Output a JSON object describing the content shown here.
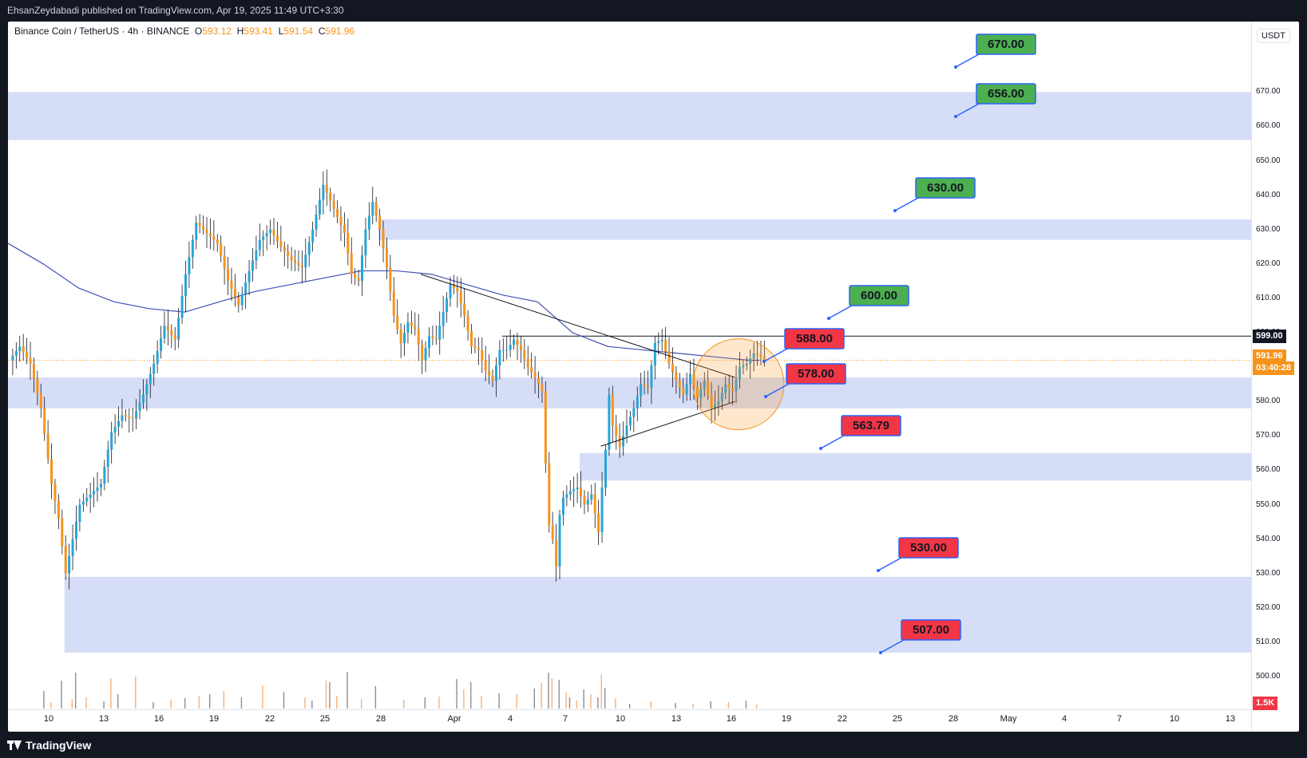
{
  "header": {
    "published_by": "EhsanZeydabadi published on TradingView.com, Apr 19, 2025 11:49 UTC+3:30"
  },
  "legend": {
    "symbol": "Binance Coin / TetherUS · 4h · BINANCE",
    "open_label": "O",
    "open": "593.12",
    "high_label": "H",
    "high": "593.41",
    "low_label": "L",
    "low": "591.54",
    "close_label": "C",
    "close": "591.96"
  },
  "footer": {
    "brand": "TradingView"
  },
  "colors": {
    "up": "#26a5d9",
    "down": "#f7931a",
    "ma": "#3f51b5",
    "zone": "#d6ddf6",
    "label_green": "#4caf50",
    "label_red": "#f23645",
    "label_border": "#2962ff",
    "current_price": "#f7931a",
    "volume_up": "#8c8f96",
    "volume_down": "#f6b27c"
  },
  "chart_data": {
    "type": "candlestick",
    "symbol": "BNB/USDT",
    "timeframe": "4h",
    "currency": "USDT",
    "ylim": [
      495,
      678
    ],
    "y_ticks": [
      500,
      510,
      520,
      530,
      540,
      550,
      560,
      570,
      580,
      590,
      600,
      610,
      620,
      630,
      640,
      650,
      660,
      670
    ],
    "x_ticks": [
      "10",
      "13",
      "16",
      "19",
      "22",
      "25",
      "28",
      "Apr",
      "4",
      "7",
      "10",
      "13",
      "16",
      "19",
      "22",
      "25",
      "28",
      "May",
      "4",
      "7",
      "10",
      "13"
    ],
    "price_path": [
      [
        0,
        592
      ],
      [
        3,
        596
      ],
      [
        6,
        591
      ],
      [
        9,
        578
      ],
      [
        12,
        556
      ],
      [
        14,
        546
      ],
      [
        16,
        530
      ],
      [
        18,
        540
      ],
      [
        20,
        550
      ],
      [
        23,
        553
      ],
      [
        26,
        556
      ],
      [
        29,
        571
      ],
      [
        32,
        576
      ],
      [
        35,
        575
      ],
      [
        38,
        582
      ],
      [
        41,
        591
      ],
      [
        44,
        602
      ],
      [
        47,
        598
      ],
      [
        50,
        617
      ],
      [
        53,
        632
      ],
      [
        56,
        629
      ],
      [
        59,
        626
      ],
      [
        62,
        615
      ],
      [
        65,
        608
      ],
      [
        68,
        618
      ],
      [
        71,
        627
      ],
      [
        74,
        630
      ],
      [
        77,
        625
      ],
      [
        80,
        621
      ],
      [
        83,
        619
      ],
      [
        86,
        630
      ],
      [
        89,
        643
      ],
      [
        92,
        636
      ],
      [
        95,
        629
      ],
      [
        97,
        617
      ],
      [
        99,
        615
      ],
      [
        101,
        630
      ],
      [
        103,
        638
      ],
      [
        105,
        630
      ],
      [
        107,
        619
      ],
      [
        109,
        605
      ],
      [
        111,
        597
      ],
      [
        113,
        603
      ],
      [
        115,
        601
      ],
      [
        117,
        592
      ],
      [
        119,
        599
      ],
      [
        121,
        598
      ],
      [
        123,
        606
      ],
      [
        125,
        614
      ],
      [
        127,
        612
      ],
      [
        129,
        605
      ],
      [
        131,
        596
      ],
      [
        133,
        595
      ],
      [
        135,
        589
      ],
      [
        137,
        586
      ],
      [
        139,
        595
      ],
      [
        141,
        595
      ],
      [
        143,
        598
      ],
      [
        145,
        595
      ],
      [
        147,
        590
      ],
      [
        149,
        587
      ],
      [
        151,
        583
      ],
      [
        152,
        562
      ],
      [
        153,
        544
      ],
      [
        154,
        540
      ],
      [
        155,
        532
      ],
      [
        156,
        547
      ],
      [
        157,
        552
      ],
      [
        159,
        554
      ],
      [
        161,
        555
      ],
      [
        163,
        550
      ],
      [
        165,
        553
      ],
      [
        167,
        542
      ],
      [
        168,
        555
      ],
      [
        169,
        566
      ],
      [
        170,
        582
      ],
      [
        171,
        573
      ],
      [
        173,
        567
      ],
      [
        175,
        573
      ],
      [
        177,
        578
      ],
      [
        179,
        585
      ],
      [
        181,
        584
      ],
      [
        183,
        597
      ],
      [
        185,
        598
      ],
      [
        187,
        591
      ],
      [
        189,
        586
      ],
      [
        191,
        582
      ],
      [
        193,
        588
      ],
      [
        195,
        581
      ],
      [
        197,
        586
      ],
      [
        199,
        578
      ],
      [
        201,
        580
      ],
      [
        203,
        585
      ],
      [
        205,
        583
      ],
      [
        207,
        590
      ],
      [
        209,
        591
      ],
      [
        211,
        594
      ],
      [
        213,
        593
      ],
      [
        214,
        592
      ]
    ],
    "moving_average": [
      [
        0,
        626
      ],
      [
        10,
        620
      ],
      [
        20,
        613
      ],
      [
        30,
        609
      ],
      [
        40,
        607
      ],
      [
        50,
        606
      ],
      [
        60,
        609
      ],
      [
        70,
        612
      ],
      [
        80,
        614
      ],
      [
        90,
        616
      ],
      [
        100,
        618
      ],
      [
        110,
        618
      ],
      [
        120,
        617
      ],
      [
        130,
        614
      ],
      [
        140,
        611
      ],
      [
        150,
        609
      ],
      [
        160,
        600
      ],
      [
        170,
        596
      ],
      [
        180,
        595
      ],
      [
        190,
        594
      ],
      [
        200,
        593
      ],
      [
        210,
        592
      ],
      [
        213,
        592
      ]
    ],
    "volume": [
      [
        10,
        22
      ],
      [
        12,
        8
      ],
      [
        15,
        35
      ],
      [
        18,
        12
      ],
      [
        19,
        45
      ],
      [
        22,
        14
      ],
      [
        27,
        9
      ],
      [
        29,
        38
      ],
      [
        31,
        18
      ],
      [
        36,
        40
      ],
      [
        41,
        8
      ],
      [
        46,
        11
      ],
      [
        50,
        13
      ],
      [
        54,
        16
      ],
      [
        57,
        18
      ],
      [
        61,
        22
      ],
      [
        66,
        14
      ],
      [
        72,
        29
      ],
      [
        78,
        21
      ],
      [
        84,
        14
      ],
      [
        86,
        10
      ],
      [
        90,
        35
      ],
      [
        91,
        33
      ],
      [
        93,
        16
      ],
      [
        96,
        46
      ],
      [
        100,
        12
      ],
      [
        104,
        28
      ],
      [
        112,
        11
      ],
      [
        118,
        14
      ],
      [
        122,
        15
      ],
      [
        127,
        37
      ],
      [
        129,
        24
      ],
      [
        131,
        33
      ],
      [
        134,
        16
      ],
      [
        139,
        19
      ],
      [
        144,
        18
      ],
      [
        149,
        25
      ],
      [
        151,
        32
      ],
      [
        153,
        45
      ],
      [
        154,
        38
      ],
      [
        156,
        36
      ],
      [
        158,
        20
      ],
      [
        159,
        14
      ],
      [
        161,
        10
      ],
      [
        163,
        24
      ],
      [
        165,
        18
      ],
      [
        167,
        14
      ],
      [
        168,
        43
      ],
      [
        169,
        26
      ],
      [
        172,
        13
      ],
      [
        176,
        6
      ],
      [
        182,
        9
      ],
      [
        189,
        7
      ],
      [
        194,
        6
      ],
      [
        199,
        9
      ],
      [
        204,
        8
      ],
      [
        209,
        10
      ],
      [
        212,
        5
      ]
    ],
    "zones": [
      {
        "from": 656,
        "to": 670
      },
      {
        "from": 627,
        "to": 633
      },
      {
        "from": 578,
        "to": 587
      },
      {
        "from": 557,
        "to": 565
      },
      {
        "from": 507,
        "to": 529
      }
    ],
    "resistance_line": 599,
    "current_price": "591.96",
    "countdown": "03:40:28",
    "axis_marker": "599.00",
    "volume_axis_label": "1.5K",
    "trendlines": [
      {
        "from": [
          117,
          617
        ],
        "to": [
          206,
          587
        ]
      },
      {
        "from": [
          168,
          567
        ],
        "to": [
          206,
          580
        ]
      }
    ],
    "highlight_circle_center": [
      207,
      585
    ],
    "targets": [
      {
        "label": "670.00",
        "value": 670,
        "kind": "up"
      },
      {
        "label": "656.00",
        "value": 656,
        "kind": "up"
      },
      {
        "label": "630.00",
        "value": 630,
        "kind": "up"
      },
      {
        "label": "600.00",
        "value": 600,
        "kind": "up"
      },
      {
        "label": "588.00",
        "value": 588,
        "kind": "down"
      },
      {
        "label": "578.00",
        "value": 578,
        "kind": "down"
      },
      {
        "label": "563.79",
        "value": 563.79,
        "kind": "down"
      },
      {
        "label": "530.00",
        "value": 530,
        "kind": "down"
      },
      {
        "label": "507.00",
        "value": 507,
        "kind": "down"
      }
    ]
  }
}
